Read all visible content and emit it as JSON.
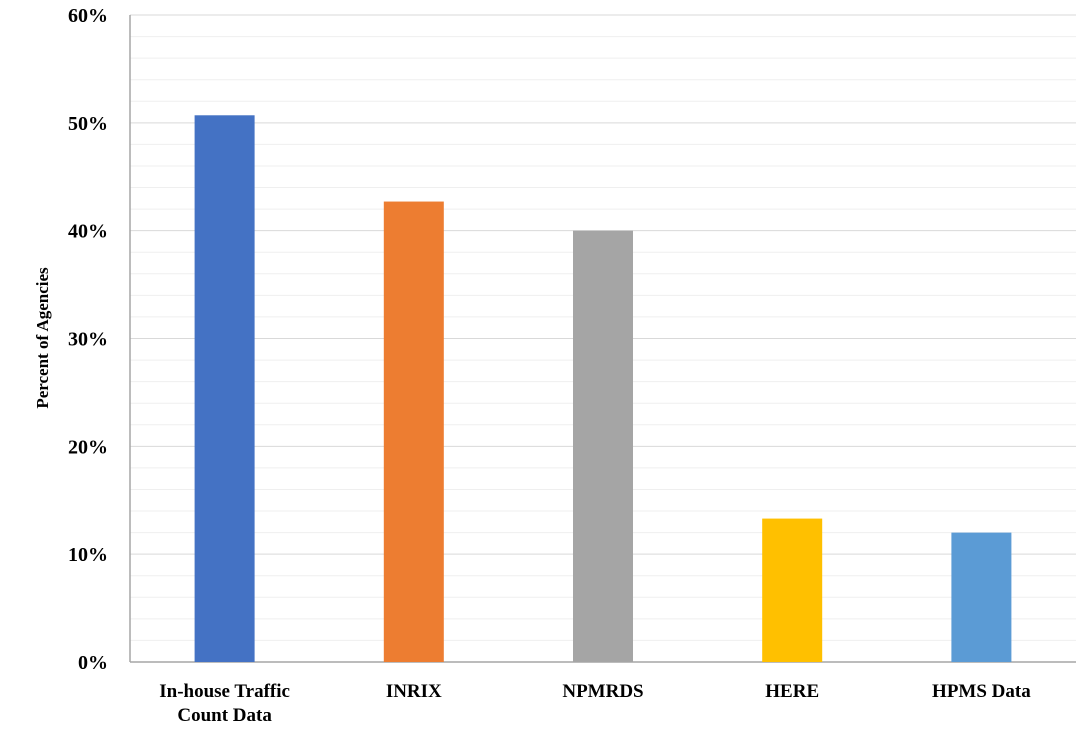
{
  "chart_data": {
    "type": "bar",
    "title": "",
    "xlabel": "",
    "ylabel": "Percent of Agencies",
    "categories": [
      [
        "In-house Traffic",
        "Count Data"
      ],
      [
        "INRIX"
      ],
      [
        "NPMRDS"
      ],
      [
        "HERE"
      ],
      [
        "HPMS Data"
      ]
    ],
    "values": [
      50.7,
      42.7,
      40.0,
      13.3,
      12.0
    ],
    "colors": [
      "#4472C4",
      "#ED7D31",
      "#A5A5A5",
      "#FFC000",
      "#5B9BD5"
    ],
    "ylim": [
      0,
      60
    ],
    "yticks": [
      0,
      10,
      20,
      30,
      40,
      50,
      60
    ],
    "ytick_labels": [
      "0%",
      "10%",
      "20%",
      "30%",
      "40%",
      "50%",
      "60%"
    ],
    "grid": true,
    "legend": "none"
  }
}
